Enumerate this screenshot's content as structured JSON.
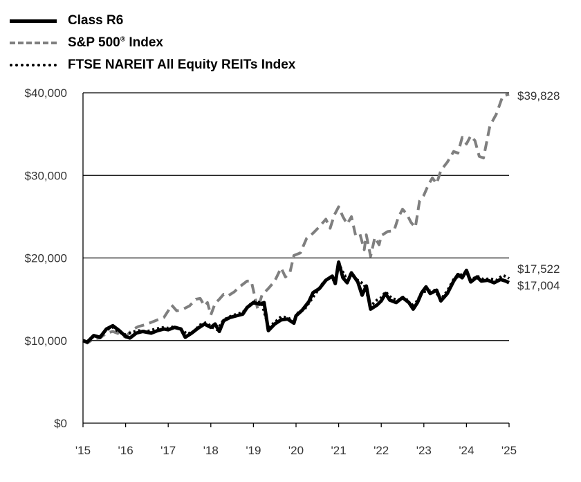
{
  "legend": {
    "class_r6": "Class R6",
    "sp500_main": "S&P 500",
    "sp500_reg": "®",
    "sp500_suffix": " Index",
    "reits": "FTSE NAREIT All Equity REITs Index"
  },
  "chart_data": {
    "type": "line",
    "title": "",
    "xlabel": "",
    "ylabel": "",
    "ylim": [
      0,
      40000
    ],
    "xlim": [
      2015,
      2025
    ],
    "grid": "horizontal",
    "legend_position": "top-left",
    "y_ticks": [
      0,
      10000,
      20000,
      30000,
      40000
    ],
    "y_tick_labels": [
      "$0",
      "$10,000",
      "$20,000",
      "$30,000",
      "$40,000"
    ],
    "x_ticks": [
      2015,
      2016,
      2017,
      2018,
      2019,
      2020,
      2021,
      2022,
      2023,
      2024,
      2025
    ],
    "x_tick_labels": [
      "'15",
      "'16",
      "'17",
      "'18",
      "'19",
      "'20",
      "'21",
      "'22",
      "'23",
      "'24",
      "'25"
    ],
    "end_labels": [
      "$39,828",
      "$17,522",
      "$17,004"
    ],
    "series": [
      {
        "name": "Class R6",
        "style": "solid",
        "color": "#000000",
        "points": [
          [
            2015,
            10000
          ],
          [
            2015.1,
            9800
          ],
          [
            2015.25,
            10600
          ],
          [
            2015.4,
            10400
          ],
          [
            2015.55,
            11400
          ],
          [
            2015.7,
            11800
          ],
          [
            2015.85,
            11200
          ],
          [
            2016,
            10500
          ],
          [
            2016.1,
            10300
          ],
          [
            2016.25,
            10900
          ],
          [
            2016.4,
            11100
          ],
          [
            2016.6,
            10900
          ],
          [
            2016.75,
            11200
          ],
          [
            2016.9,
            11400
          ],
          [
            2017,
            11300
          ],
          [
            2017.15,
            11600
          ],
          [
            2017.3,
            11400
          ],
          [
            2017.4,
            10400
          ],
          [
            2017.55,
            10900
          ],
          [
            2017.7,
            11500
          ],
          [
            2017.85,
            12000
          ],
          [
            2018,
            11600
          ],
          [
            2018.1,
            12000
          ],
          [
            2018.2,
            11100
          ],
          [
            2018.3,
            12400
          ],
          [
            2018.45,
            12800
          ],
          [
            2018.6,
            13000
          ],
          [
            2018.75,
            13200
          ],
          [
            2018.85,
            14000
          ],
          [
            2019,
            14600
          ],
          [
            2019.15,
            14400
          ],
          [
            2019.25,
            14600
          ],
          [
            2019.35,
            11200
          ],
          [
            2019.5,
            12000
          ],
          [
            2019.65,
            12500
          ],
          [
            2019.8,
            12600
          ],
          [
            2019.95,
            12100
          ],
          [
            2020,
            13000
          ],
          [
            2020.15,
            13700
          ],
          [
            2020.3,
            14700
          ],
          [
            2020.4,
            15800
          ],
          [
            2020.55,
            16300
          ],
          [
            2020.7,
            17300
          ],
          [
            2020.85,
            17800
          ],
          [
            2020.92,
            16900
          ],
          [
            2021,
            19500
          ],
          [
            2021.1,
            17600
          ],
          [
            2021.2,
            17000
          ],
          [
            2021.3,
            18200
          ],
          [
            2021.45,
            17100
          ],
          [
            2021.55,
            15500
          ],
          [
            2021.65,
            16600
          ],
          [
            2021.75,
            13800
          ],
          [
            2021.9,
            14300
          ],
          [
            2022,
            14800
          ],
          [
            2022.1,
            15700
          ],
          [
            2022.2,
            14900
          ],
          [
            2022.35,
            14600
          ],
          [
            2022.5,
            15200
          ],
          [
            2022.65,
            14600
          ],
          [
            2022.75,
            13800
          ],
          [
            2022.85,
            14600
          ],
          [
            2022.95,
            15800
          ],
          [
            2023.05,
            16500
          ],
          [
            2023.15,
            15700
          ],
          [
            2023.3,
            16100
          ],
          [
            2023.4,
            14800
          ],
          [
            2023.55,
            15700
          ],
          [
            2023.7,
            17200
          ],
          [
            2023.8,
            18000
          ],
          [
            2023.9,
            17600
          ],
          [
            2024,
            18500
          ],
          [
            2024.1,
            17100
          ],
          [
            2024.25,
            17700
          ],
          [
            2024.35,
            17200
          ],
          [
            2024.5,
            17300
          ],
          [
            2024.65,
            17000
          ],
          [
            2024.8,
            17400
          ],
          [
            2024.92,
            17200
          ],
          [
            2025,
            17004
          ]
        ]
      },
      {
        "name": "S&P 500® Index",
        "style": "dashed",
        "color": "#7f7f7f",
        "points": [
          [
            2015,
            10000
          ],
          [
            2015.1,
            9700
          ],
          [
            2015.25,
            10200
          ],
          [
            2015.4,
            10300
          ],
          [
            2015.55,
            10900
          ],
          [
            2015.7,
            11100
          ],
          [
            2015.85,
            10800
          ],
          [
            2016,
            10400
          ],
          [
            2016.15,
            11300
          ],
          [
            2016.3,
            11700
          ],
          [
            2016.45,
            11900
          ],
          [
            2016.6,
            12200
          ],
          [
            2016.75,
            12500
          ],
          [
            2016.9,
            12800
          ],
          [
            2017,
            13600
          ],
          [
            2017.08,
            14300
          ],
          [
            2017.2,
            13600
          ],
          [
            2017.35,
            13800
          ],
          [
            2017.5,
            14200
          ],
          [
            2017.65,
            15000
          ],
          [
            2017.75,
            15100
          ],
          [
            2017.85,
            14200
          ],
          [
            2017.92,
            14600
          ],
          [
            2018,
            13100
          ],
          [
            2018.1,
            14500
          ],
          [
            2018.2,
            15000
          ],
          [
            2018.3,
            15600
          ],
          [
            2018.4,
            15400
          ],
          [
            2018.55,
            15900
          ],
          [
            2018.7,
            16600
          ],
          [
            2018.85,
            17200
          ],
          [
            2018.95,
            17200
          ],
          [
            2019.1,
            13800
          ],
          [
            2019.2,
            15500
          ],
          [
            2019.35,
            16300
          ],
          [
            2019.5,
            17200
          ],
          [
            2019.65,
            18800
          ],
          [
            2019.75,
            17700
          ],
          [
            2019.85,
            18100
          ],
          [
            2019.95,
            20300
          ],
          [
            2020.1,
            20600
          ],
          [
            2020.25,
            22400
          ],
          [
            2020.4,
            23000
          ],
          [
            2020.55,
            23800
          ],
          [
            2020.7,
            24700
          ],
          [
            2020.8,
            23600
          ],
          [
            2020.9,
            25200
          ],
          [
            2021,
            26200
          ],
          [
            2021.1,
            25000
          ],
          [
            2021.2,
            24100
          ],
          [
            2021.3,
            25000
          ],
          [
            2021.4,
            22700
          ],
          [
            2021.5,
            22900
          ],
          [
            2021.6,
            21000
          ],
          [
            2021.65,
            22800
          ],
          [
            2021.75,
            20200
          ],
          [
            2021.85,
            22500
          ],
          [
            2021.95,
            21600
          ],
          [
            2022,
            22700
          ],
          [
            2022.15,
            23200
          ],
          [
            2022.3,
            23300
          ],
          [
            2022.4,
            24900
          ],
          [
            2022.5,
            25900
          ],
          [
            2022.6,
            25300
          ],
          [
            2022.7,
            24300
          ],
          [
            2022.8,
            23700
          ],
          [
            2022.9,
            26900
          ],
          [
            2023,
            27600
          ],
          [
            2023.1,
            28800
          ],
          [
            2023.2,
            29700
          ],
          [
            2023.3,
            29000
          ],
          [
            2023.4,
            30600
          ],
          [
            2023.55,
            31600
          ],
          [
            2023.7,
            32900
          ],
          [
            2023.8,
            32700
          ],
          [
            2023.9,
            34600
          ],
          [
            2024,
            33800
          ],
          [
            2024.1,
            34800
          ],
          [
            2024.2,
            34200
          ],
          [
            2024.3,
            32300
          ],
          [
            2024.4,
            32100
          ],
          [
            2024.55,
            36000
          ],
          [
            2024.7,
            37400
          ],
          [
            2024.85,
            39600
          ],
          [
            2025,
            39828
          ]
        ]
      },
      {
        "name": "FTSE NAREIT All Equity REITs Index",
        "style": "dotted",
        "color": "#000000",
        "points": [
          [
            2015,
            10000
          ],
          [
            2015.1,
            9900
          ],
          [
            2015.25,
            10500
          ],
          [
            2015.4,
            10500
          ],
          [
            2015.55,
            11300
          ],
          [
            2015.7,
            11600
          ],
          [
            2015.85,
            11000
          ],
          [
            2016,
            10700
          ],
          [
            2016.15,
            11000
          ],
          [
            2016.3,
            11200
          ],
          [
            2016.5,
            11100
          ],
          [
            2016.7,
            11400
          ],
          [
            2016.9,
            11600
          ],
          [
            2017,
            11500
          ],
          [
            2017.15,
            11700
          ],
          [
            2017.3,
            11300
          ],
          [
            2017.45,
            10800
          ],
          [
            2017.6,
            11100
          ],
          [
            2017.75,
            11900
          ],
          [
            2017.9,
            12200
          ],
          [
            2018,
            11700
          ],
          [
            2018.15,
            11300
          ],
          [
            2018.3,
            12500
          ],
          [
            2018.45,
            12900
          ],
          [
            2018.6,
            13200
          ],
          [
            2018.75,
            13400
          ],
          [
            2018.9,
            14300
          ],
          [
            2019.05,
            14800
          ],
          [
            2019.2,
            14500
          ],
          [
            2019.35,
            11600
          ],
          [
            2019.5,
            12200
          ],
          [
            2019.65,
            12900
          ],
          [
            2019.8,
            12800
          ],
          [
            2019.95,
            12300
          ],
          [
            2020.05,
            13400
          ],
          [
            2020.2,
            13800
          ],
          [
            2020.35,
            14900
          ],
          [
            2020.5,
            16000
          ],
          [
            2020.65,
            17100
          ],
          [
            2020.8,
            17600
          ],
          [
            2020.92,
            17200
          ],
          [
            2021,
            19300
          ],
          [
            2021.15,
            17800
          ],
          [
            2021.3,
            18000
          ],
          [
            2021.45,
            17300
          ],
          [
            2021.6,
            16800
          ],
          [
            2021.75,
            14200
          ],
          [
            2021.9,
            14900
          ],
          [
            2022,
            15200
          ],
          [
            2022.1,
            15900
          ],
          [
            2022.25,
            15100
          ],
          [
            2022.4,
            14900
          ],
          [
            2022.55,
            15300
          ],
          [
            2022.7,
            14200
          ],
          [
            2022.85,
            14800
          ],
          [
            2022.95,
            15900
          ],
          [
            2023.1,
            16000
          ],
          [
            2023.25,
            16100
          ],
          [
            2023.4,
            15000
          ],
          [
            2023.55,
            16000
          ],
          [
            2023.7,
            17400
          ],
          [
            2023.85,
            17900
          ],
          [
            2024,
            18300
          ],
          [
            2024.1,
            17300
          ],
          [
            2024.25,
            17800
          ],
          [
            2024.4,
            17400
          ],
          [
            2024.55,
            17500
          ],
          [
            2024.7,
            17300
          ],
          [
            2024.85,
            17900
          ],
          [
            2024.95,
            17700
          ],
          [
            2025,
            17522
          ]
        ]
      }
    ]
  }
}
